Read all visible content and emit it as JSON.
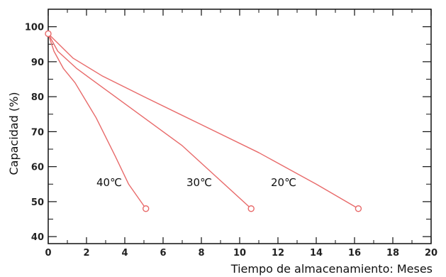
{
  "chart_data": {
    "type": "line",
    "title": "",
    "xlabel": "Tiempo de almacenamiento: Meses",
    "ylabel": "Capacidad (%)",
    "xlim": [
      0,
      20
    ],
    "ylim": [
      38,
      105
    ],
    "x_ticks": [
      0,
      2,
      4,
      6,
      8,
      10,
      12,
      14,
      16,
      18,
      20
    ],
    "y_ticks": [
      40,
      50,
      60,
      70,
      80,
      90,
      100
    ],
    "x_minor_step": 1,
    "y_minor_step": 5,
    "grid": false,
    "line_color": "#e86a6a",
    "series": [
      {
        "name": "40℃",
        "x": [
          0,
          0.3,
          0.8,
          1.4,
          2.5,
          3.5,
          4.2,
          5.1
        ],
        "y": [
          98,
          93,
          88,
          84,
          74,
          63,
          55,
          48
        ]
      },
      {
        "name": "30℃",
        "x": [
          0,
          0.5,
          1.5,
          3,
          5,
          7,
          9,
          10.6
        ],
        "y": [
          98,
          93,
          88,
          82,
          74,
          66,
          56,
          48
        ]
      },
      {
        "name": "20℃",
        "x": [
          0,
          1.3,
          2.8,
          5,
          8,
          11,
          14,
          16.2
        ],
        "y": [
          98,
          91,
          86,
          80,
          72,
          64,
          55,
          48
        ]
      }
    ]
  }
}
